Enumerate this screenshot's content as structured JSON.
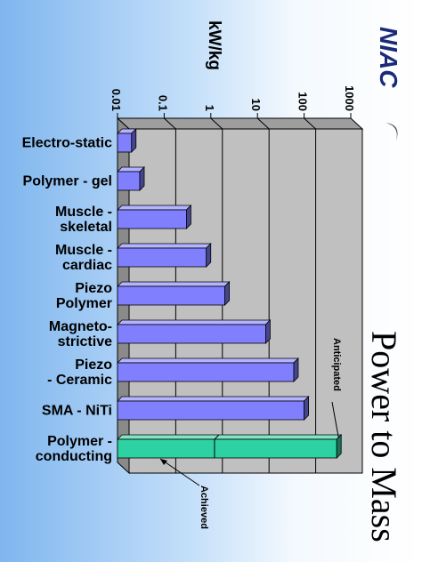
{
  "slide": {
    "title": "Power to Mass",
    "logo_text": "NIAC"
  },
  "chart_data": {
    "type": "bar",
    "orientation": "horizontal",
    "scale": "log",
    "title": "",
    "value_axis_label": "kW/kg",
    "ticks": [
      0.01,
      0.1,
      1,
      10,
      100,
      1000
    ],
    "tick_labels": [
      "0.01",
      "0.1",
      "1",
      "10",
      "100",
      "1000"
    ],
    "xlim": [
      0.01,
      1000
    ],
    "grid": true,
    "categories": [
      [
        "Electro-static"
      ],
      [
        "Polymer - gel"
      ],
      [
        "Muscle -",
        "skeletal"
      ],
      [
        "Muscle -",
        "cardiac"
      ],
      [
        "Piezo",
        "Polymer"
      ],
      [
        "Magneto-",
        "strictive"
      ],
      [
        "Piezo",
        "- Ceramic"
      ],
      [
        "SMA -  NiTi"
      ],
      [
        "Polymer -",
        "conducting"
      ]
    ],
    "values": [
      0.02,
      0.03,
      0.3,
      0.8,
      2,
      15,
      60,
      100,
      1.2
    ],
    "anticipated": [
      null,
      null,
      null,
      null,
      null,
      null,
      null,
      null,
      500
    ],
    "bar_color": "#8080ff",
    "highlight_index": 8,
    "highlight_color": "#2ed1a2",
    "annotations": [
      {
        "text": "Anticipated",
        "target": "anticipated"
      },
      {
        "text": "Achieved",
        "target": "value"
      }
    ]
  }
}
